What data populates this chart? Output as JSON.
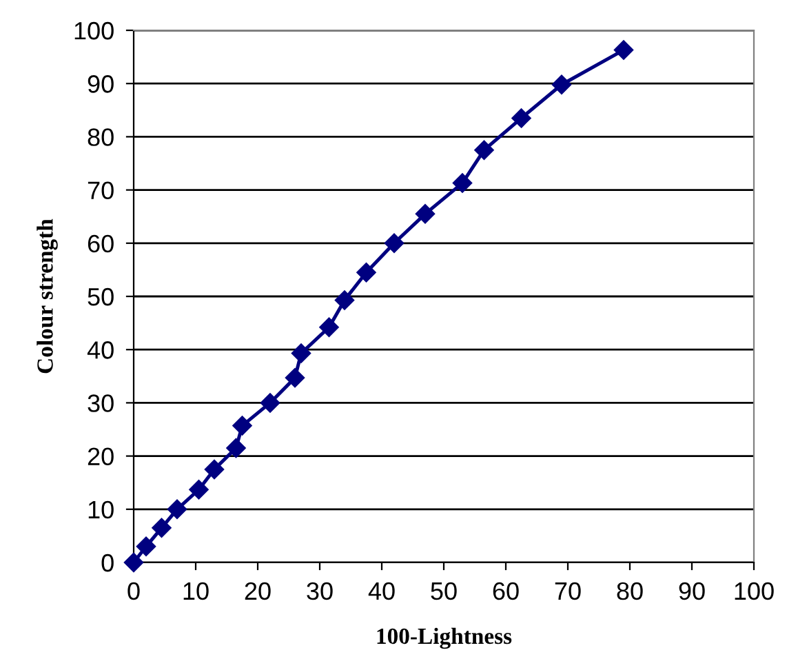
{
  "chart_data": {
    "type": "line",
    "xlabel": "100-Lightness",
    "ylabel": "Colour strength",
    "series": [
      {
        "color": "#000080",
        "x": [
          0,
          2,
          4.5,
          7,
          10.5,
          13,
          16.5,
          17.5,
          22,
          26,
          27,
          31.5,
          34,
          37.5,
          42,
          47,
          53,
          56.5,
          62.5,
          69,
          79
        ],
        "values": [
          0,
          3,
          6.5,
          10,
          13.7,
          17.5,
          21.5,
          25.7,
          30,
          34.7,
          39.3,
          44.2,
          49.3,
          54.5,
          60,
          65.5,
          71.3,
          77.5,
          83.5,
          89.8,
          96.3
        ]
      }
    ],
    "xlim": [
      0,
      100
    ],
    "ylim": [
      0,
      100
    ],
    "xticks": [
      0,
      10,
      20,
      30,
      40,
      50,
      60,
      70,
      80,
      90,
      100
    ],
    "yticks": [
      0,
      10,
      20,
      30,
      40,
      50,
      60,
      70,
      80,
      90,
      100
    ],
    "grid": "y",
    "marker": "diamond",
    "line_style": "solid"
  }
}
